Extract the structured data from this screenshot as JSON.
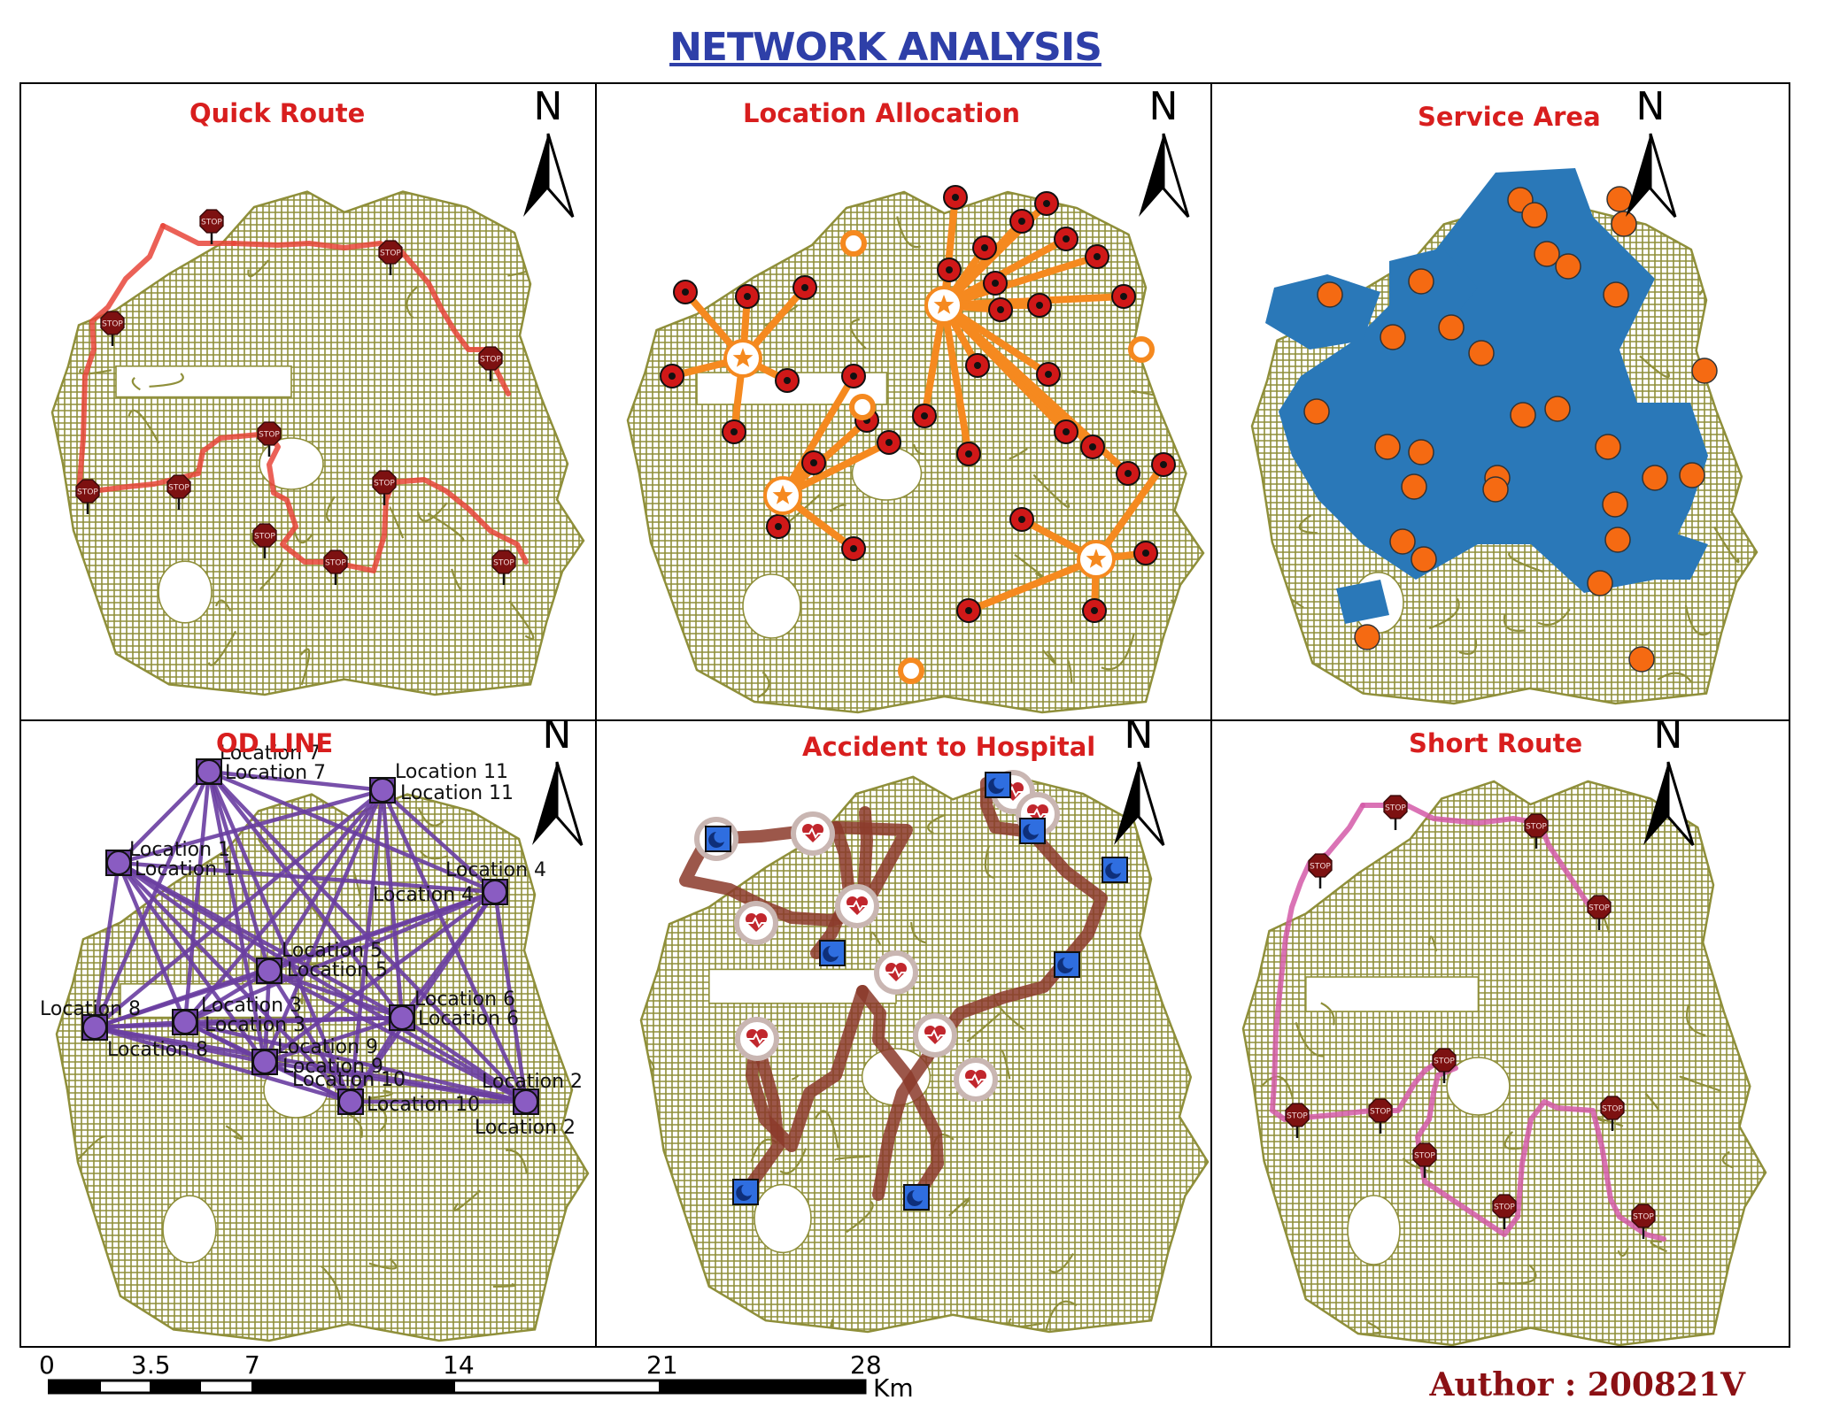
{
  "title": "NETWORK ANALYSIS",
  "north_label": "N",
  "panels": {
    "quick_route": {
      "title": "Quick Route",
      "stop_label": "STOP"
    },
    "location_allocation": {
      "title": "Location Allocation"
    },
    "service_area": {
      "title": "Service Area"
    },
    "od_line": {
      "title": "OD LINE",
      "locations": [
        "Location 1",
        "Location 2",
        "Location 3",
        "Location 4",
        "Location 5",
        "Location 6",
        "Location 7",
        "Location 8",
        "Location 9",
        "Location 10",
        "Location 11"
      ]
    },
    "accident_to_hospital": {
      "title": "Accident to Hospital"
    },
    "short_route": {
      "title": "Short Route",
      "stop_label": "STOP"
    }
  },
  "scale_bar": {
    "ticks": [
      "0",
      "3.5",
      "7",
      "14",
      "21",
      "28"
    ],
    "unit": "Km"
  },
  "author": "Author : 200821V",
  "colors": {
    "title": "#2e3fa8",
    "panel_title": "#d81e1e",
    "street_network": "#8f8f3a",
    "quick_route": "#e8453a",
    "allocation_line": "#f5891f",
    "service_area": "#2a78b8",
    "service_point": "#f56a12",
    "od_line": "#6a3ea1",
    "hospital_route": "#8b3a2a",
    "short_route": "#d45aa8",
    "author": "#8b1014"
  }
}
